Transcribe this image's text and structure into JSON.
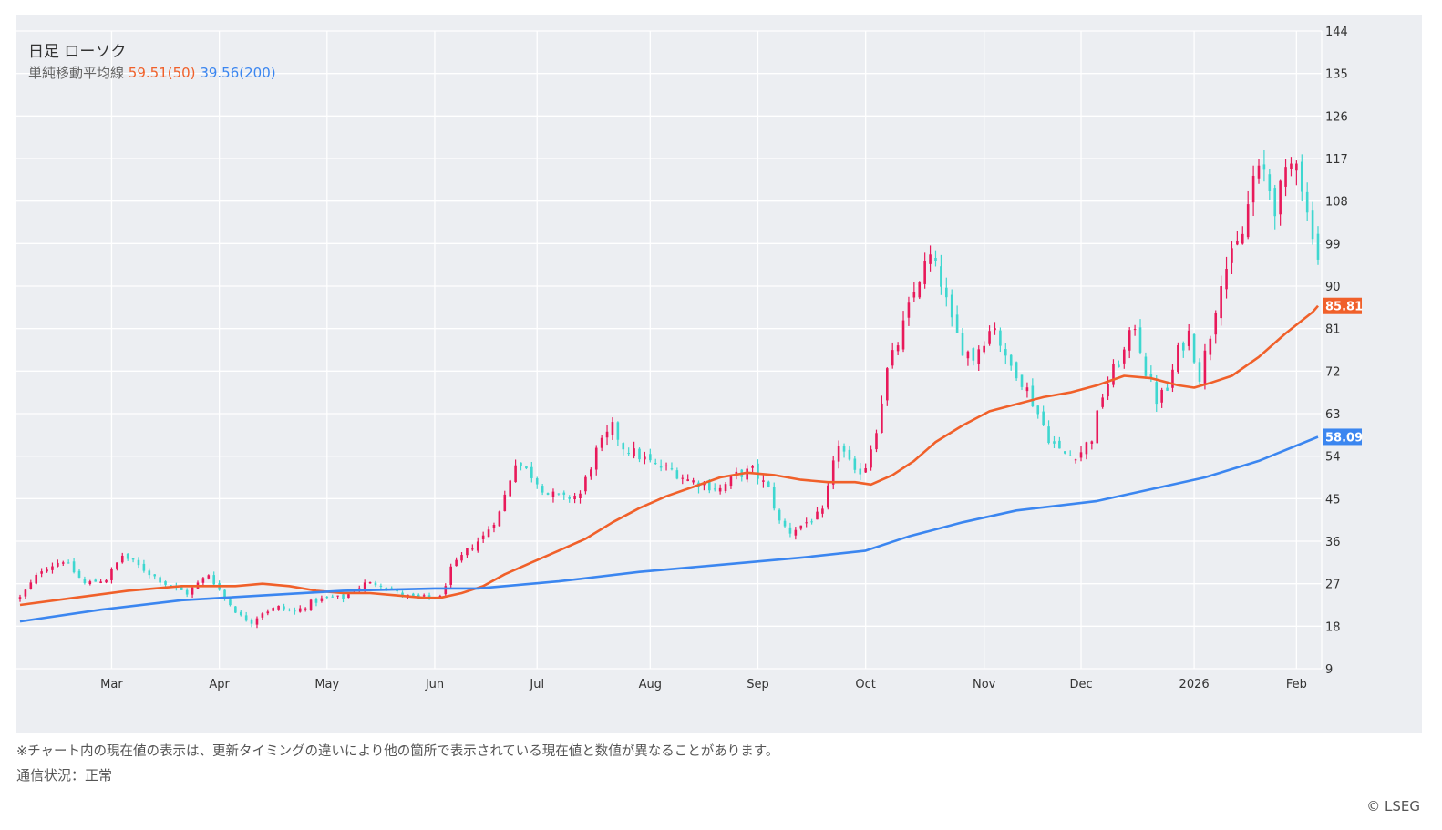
{
  "header": {
    "title": "日足 ローソク",
    "ma_label": "単純移動平均線",
    "ma50_text": "59.51(50)",
    "ma200_text": "39.56(200)"
  },
  "colors": {
    "up": "#e8195a",
    "down": "#3ed7d0",
    "ma50": "#f0602a",
    "ma200": "#3b86f0",
    "background": "#eceef2",
    "grid": "#ffffff"
  },
  "footer": {
    "note": "※チャート内の現在値の表示は、更新タイミングの違いにより他の箇所で表示されている現在値と数値が異なることがあります。",
    "status": "通信状況：正常",
    "copyright": "© LSEG"
  },
  "chart_data": {
    "type": "candlestick",
    "title": "日足 ローソク",
    "ylim": [
      9,
      144
    ],
    "y_ticks": [
      144,
      135,
      126,
      117,
      108,
      99,
      90,
      81,
      72,
      63,
      54,
      45,
      36,
      27,
      18,
      9
    ],
    "y_axis_position": "right",
    "grid": true,
    "month_labels": [
      {
        "label": "Mar",
        "day": 17
      },
      {
        "label": "Apr",
        "day": 37
      },
      {
        "label": "May",
        "day": 57
      },
      {
        "label": "Jun",
        "day": 77
      },
      {
        "label": "Jul",
        "day": 96
      },
      {
        "label": "Aug",
        "day": 117
      },
      {
        "label": "Sep",
        "day": 137
      },
      {
        "label": "Oct",
        "day": 157
      },
      {
        "label": "Nov",
        "day": 179
      },
      {
        "label": "Dec",
        "day": 197
      },
      {
        "label": "2026",
        "day": 218
      },
      {
        "label": "Feb",
        "day": 237
      }
    ],
    "price_tags": [
      {
        "label": "85.81",
        "value": 85.81,
        "color": "#f0602a"
      },
      {
        "label": "58.09",
        "value": 58.09,
        "color": "#3b86f0"
      }
    ],
    "series": [
      {
        "name": "59.51(50)",
        "key": "ma50",
        "points": [
          [
            0,
            22.5
          ],
          [
            10,
            24
          ],
          [
            20,
            25.5
          ],
          [
            30,
            26.5
          ],
          [
            40,
            26.5
          ],
          [
            45,
            27
          ],
          [
            50,
            26.5
          ],
          [
            55,
            25.5
          ],
          [
            60,
            25
          ],
          [
            65,
            25
          ],
          [
            70,
            24.5
          ],
          [
            75,
            24
          ],
          [
            78,
            24
          ],
          [
            82,
            25
          ],
          [
            86,
            26.5
          ],
          [
            90,
            29
          ],
          [
            95,
            31.5
          ],
          [
            100,
            34
          ],
          [
            105,
            36.5
          ],
          [
            110,
            40
          ],
          [
            115,
            43
          ],
          [
            120,
            45.5
          ],
          [
            125,
            47.5
          ],
          [
            130,
            49.5
          ],
          [
            135,
            50.5
          ],
          [
            140,
            50
          ],
          [
            145,
            49
          ],
          [
            150,
            48.5
          ],
          [
            155,
            48.5
          ],
          [
            158,
            48
          ],
          [
            162,
            50
          ],
          [
            166,
            53
          ],
          [
            170,
            57
          ],
          [
            175,
            60.5
          ],
          [
            180,
            63.5
          ],
          [
            185,
            65
          ],
          [
            190,
            66.5
          ],
          [
            195,
            67.5
          ],
          [
            200,
            69
          ],
          [
            205,
            71
          ],
          [
            210,
            70.5
          ],
          [
            215,
            69
          ],
          [
            218,
            68.5
          ],
          [
            221,
            69.5
          ],
          [
            225,
            71
          ],
          [
            230,
            75
          ],
          [
            235,
            80
          ],
          [
            240,
            84.5
          ],
          [
            241,
            85.81
          ]
        ]
      },
      {
        "name": "39.56(200)",
        "key": "ma200",
        "points": [
          [
            0,
            19
          ],
          [
            15,
            21.5
          ],
          [
            30,
            23.5
          ],
          [
            45,
            24.5
          ],
          [
            60,
            25.5
          ],
          [
            77,
            26
          ],
          [
            85,
            26
          ],
          [
            100,
            27.5
          ],
          [
            115,
            29.5
          ],
          [
            130,
            31
          ],
          [
            145,
            32.5
          ],
          [
            157,
            34
          ],
          [
            165,
            37
          ],
          [
            175,
            40
          ],
          [
            185,
            42.5
          ],
          [
            200,
            44.5
          ],
          [
            210,
            47
          ],
          [
            220,
            49.5
          ],
          [
            230,
            53
          ],
          [
            241,
            58.09
          ]
        ]
      }
    ],
    "candles": {
      "count": 242,
      "anchors": [
        [
          0,
          24
        ],
        [
          4,
          30
        ],
        [
          8,
          32
        ],
        [
          12,
          27
        ],
        [
          16,
          28
        ],
        [
          19,
          33
        ],
        [
          23,
          30
        ],
        [
          27,
          27
        ],
        [
          31,
          25
        ],
        [
          35,
          29
        ],
        [
          38,
          24
        ],
        [
          41,
          20
        ],
        [
          43,
          19
        ],
        [
          45,
          21
        ],
        [
          48,
          22
        ],
        [
          51,
          21
        ],
        [
          54,
          23
        ],
        [
          57,
          24
        ],
        [
          60,
          24
        ],
        [
          64,
          27
        ],
        [
          67,
          27
        ],
        [
          70,
          25
        ],
        [
          73,
          24
        ],
        [
          76,
          24
        ],
        [
          78,
          24
        ],
        [
          80,
          30
        ],
        [
          83,
          34
        ],
        [
          86,
          37
        ],
        [
          89,
          42
        ],
        [
          92,
          53
        ],
        [
          95,
          50
        ],
        [
          98,
          46
        ],
        [
          101,
          45
        ],
        [
          104,
          46
        ],
        [
          107,
          55
        ],
        [
          110,
          60
        ],
        [
          112,
          56
        ],
        [
          115,
          54
        ],
        [
          118,
          52
        ],
        [
          121,
          51
        ],
        [
          124,
          49
        ],
        [
          127,
          48
        ],
        [
          130,
          47
        ],
        [
          133,
          50
        ],
        [
          136,
          51
        ],
        [
          139,
          47
        ],
        [
          141,
          40
        ],
        [
          143,
          38
        ],
        [
          146,
          40
        ],
        [
          149,
          42
        ],
        [
          152,
          57
        ],
        [
          155,
          50
        ],
        [
          157,
          52
        ],
        [
          159,
          60
        ],
        [
          161,
          72
        ],
        [
          163,
          78
        ],
        [
          165,
          85
        ],
        [
          167,
          92
        ],
        [
          169,
          96
        ],
        [
          171,
          91
        ],
        [
          173,
          82
        ],
        [
          175,
          77
        ],
        [
          177,
          75
        ],
        [
          179,
          79
        ],
        [
          181,
          82
        ],
        [
          183,
          74
        ],
        [
          185,
          72
        ],
        [
          187,
          68
        ],
        [
          189,
          63
        ],
        [
          191,
          58
        ],
        [
          193,
          55
        ],
        [
          195,
          54
        ],
        [
          197,
          55
        ],
        [
          199,
          58
        ],
        [
          201,
          67
        ],
        [
          203,
          72
        ],
        [
          205,
          76
        ],
        [
          207,
          82
        ],
        [
          209,
          72
        ],
        [
          211,
          66
        ],
        [
          213,
          68
        ],
        [
          215,
          76
        ],
        [
          217,
          80
        ],
        [
          219,
          71
        ],
        [
          221,
          80
        ],
        [
          223,
          92
        ],
        [
          225,
          96
        ],
        [
          227,
          101
        ],
        [
          229,
          113
        ],
        [
          231,
          114
        ],
        [
          233,
          107
        ],
        [
          235,
          113
        ],
        [
          237,
          118
        ],
        [
          239,
          105
        ],
        [
          240,
          102
        ],
        [
          241,
          96
        ]
      ]
    }
  }
}
